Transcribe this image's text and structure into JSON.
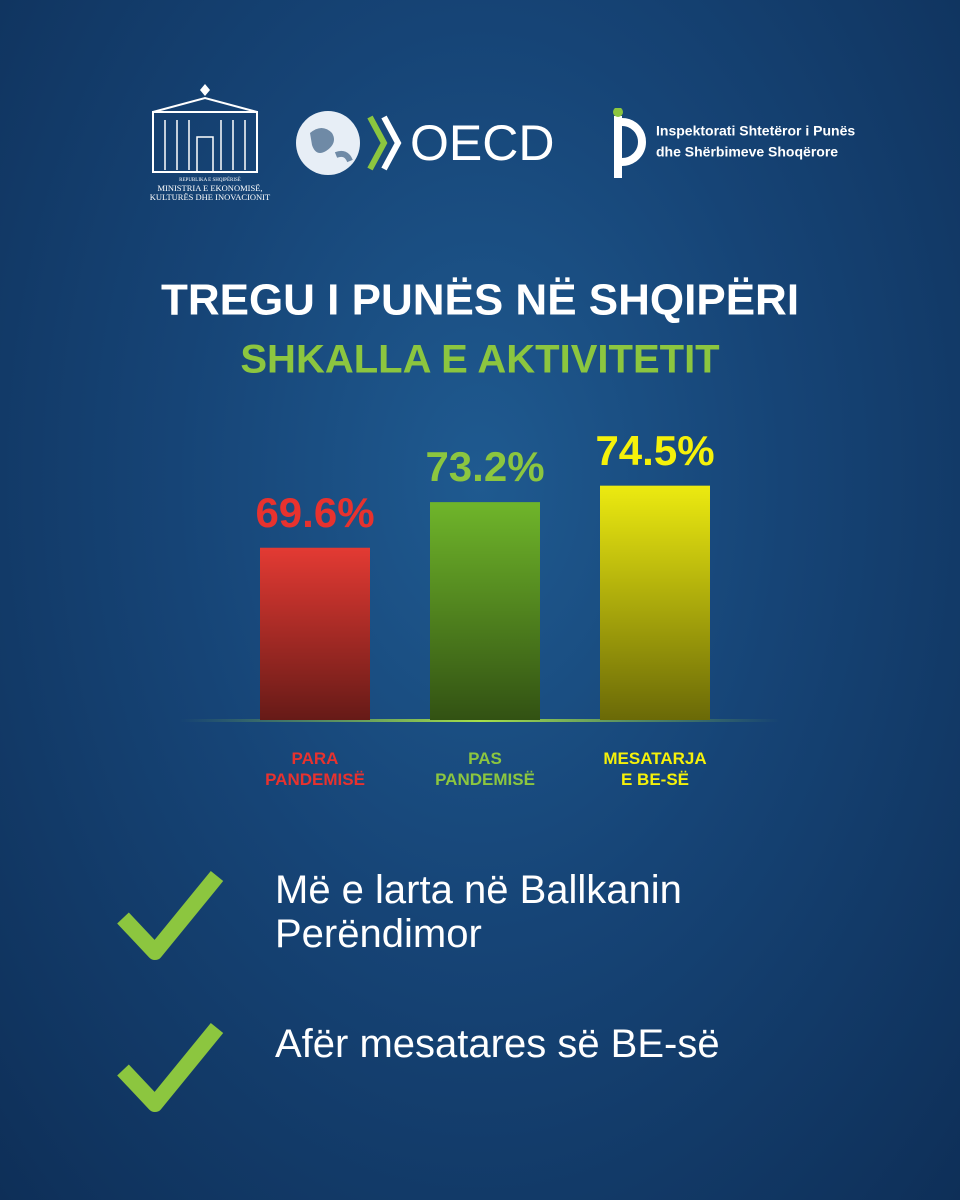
{
  "logos": {
    "ministry_top": "REPUBLIKA E SHQIPËRISË",
    "ministry": "MINISTRIA E EKONOMISË,",
    "ministry_2": "KULTURËS DHE INOVACIONIT",
    "oecd": "OECD",
    "inspectorate": "Inspektorati Shtetëror i Punës",
    "inspectorate_2": "dhe Shërbimeve Shoqërore"
  },
  "chart_data": {
    "type": "bar",
    "title": "TREGU I PUNËS NË SHQIPËRI",
    "subtitle": "SHKALLA E AKTIVITETIT",
    "categories": [
      "PARA PANDEMISË",
      "PAS PANDEMISË",
      "MESATARJA E BE-SË"
    ],
    "values": [
      69.6,
      73.2,
      74.5
    ],
    "value_labels": [
      "69.6%",
      "73.2%",
      "74.5%"
    ],
    "colors": [
      "#e33a33",
      "#6fb52a",
      "#ecea10"
    ],
    "label_colors": [
      "#e8322e",
      "#8cc63f",
      "#f5f10a"
    ],
    "ylim": [
      56,
      80
    ]
  },
  "points": [
    "Më e larta në Ballkanin Perëndimor",
    "Afër mesatares së BE-së"
  ]
}
